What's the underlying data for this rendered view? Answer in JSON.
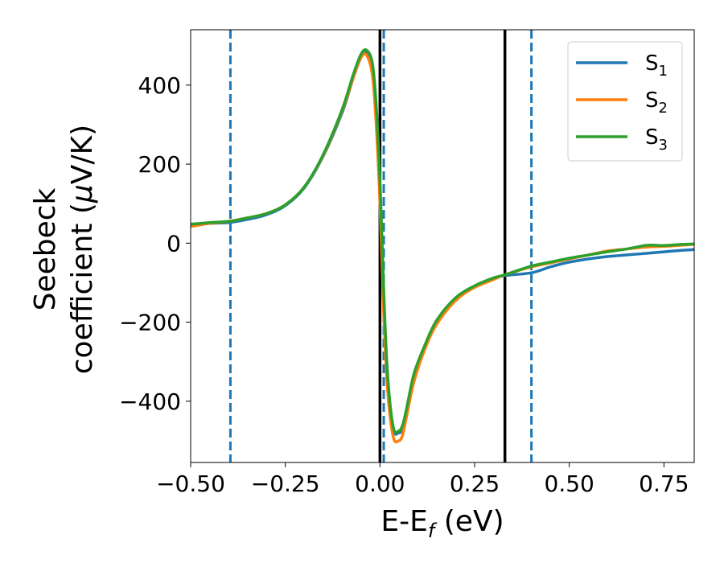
{
  "chart_data": {
    "type": "line",
    "title": "",
    "xlabel_main": "E-E",
    "xlabel_sub": "f",
    "xlabel_tail": " (eV)",
    "ylabel_line1": "Seebeck",
    "ylabel_line2_a": "coefficient  (",
    "ylabel_line2_mu": "μ",
    "ylabel_line2_b": "V/K)",
    "xlim": [
      -0.5,
      0.83
    ],
    "ylim": [
      -555,
      540
    ],
    "xticks": [
      -0.5,
      -0.25,
      0.0,
      0.25,
      0.5,
      0.75
    ],
    "xtick_labels": [
      "−0.50",
      "−0.25",
      "0.00",
      "0.25",
      "0.50",
      "0.75"
    ],
    "yticks": [
      -400,
      -200,
      0,
      200,
      400
    ],
    "ytick_labels": [
      "−400",
      "−200",
      "0",
      "200",
      "400"
    ],
    "grid": false,
    "legend_position": "top-right",
    "series": [
      {
        "name": "S",
        "sub": "1",
        "color": "#1f77b4",
        "x": [
          -0.5,
          -0.45,
          -0.4,
          -0.35,
          -0.3,
          -0.25,
          -0.2,
          -0.15,
          -0.1,
          -0.07,
          -0.05,
          -0.035,
          -0.02,
          -0.01,
          0.0,
          0.01,
          0.02,
          0.035,
          0.05,
          0.06,
          0.07,
          0.09,
          0.12,
          0.15,
          0.2,
          0.25,
          0.3,
          0.33,
          0.4,
          0.45,
          0.5,
          0.55,
          0.6,
          0.65,
          0.7,
          0.75,
          0.8,
          0.83
        ],
        "y": [
          45,
          50,
          52,
          60,
          72,
          95,
          140,
          220,
          330,
          420,
          470,
          482,
          440,
          330,
          130,
          -150,
          -340,
          -470,
          -480,
          -470,
          -430,
          -340,
          -260,
          -200,
          -140,
          -110,
          -90,
          -82,
          -75,
          -60,
          -48,
          -40,
          -34,
          -30,
          -26,
          -22,
          -18,
          -16
        ]
      },
      {
        "name": "S",
        "sub": "2",
        "color": "#ff7f0e",
        "x": [
          -0.5,
          -0.45,
          -0.4,
          -0.35,
          -0.3,
          -0.25,
          -0.2,
          -0.15,
          -0.1,
          -0.07,
          -0.05,
          -0.035,
          -0.02,
          -0.01,
          0.0,
          0.01,
          0.02,
          0.035,
          0.05,
          0.06,
          0.07,
          0.09,
          0.12,
          0.15,
          0.2,
          0.25,
          0.3,
          0.33,
          0.4,
          0.45,
          0.5,
          0.55,
          0.6,
          0.65,
          0.7,
          0.75,
          0.8,
          0.83
        ],
        "y": [
          42,
          50,
          55,
          64,
          75,
          97,
          142,
          222,
          335,
          420,
          470,
          475,
          425,
          300,
          100,
          -180,
          -370,
          -490,
          -500,
          -485,
          -440,
          -350,
          -265,
          -205,
          -145,
          -112,
          -92,
          -80,
          -60,
          -50,
          -40,
          -30,
          -20,
          -15,
          -10,
          -8,
          -5,
          -3
        ]
      },
      {
        "name": "S",
        "sub": "3",
        "color": "#2ca02c",
        "x": [
          -0.5,
          -0.45,
          -0.4,
          -0.35,
          -0.3,
          -0.25,
          -0.2,
          -0.15,
          -0.1,
          -0.07,
          -0.05,
          -0.035,
          -0.02,
          -0.01,
          0.0,
          0.01,
          0.02,
          0.035,
          0.05,
          0.06,
          0.07,
          0.09,
          0.12,
          0.15,
          0.2,
          0.25,
          0.3,
          0.33,
          0.4,
          0.45,
          0.5,
          0.55,
          0.6,
          0.65,
          0.7,
          0.72,
          0.75,
          0.8,
          0.83
        ],
        "y": [
          48,
          52,
          55,
          64,
          75,
          97,
          142,
          224,
          338,
          428,
          478,
          488,
          455,
          350,
          160,
          -120,
          -330,
          -465,
          -475,
          -460,
          -420,
          -330,
          -255,
          -195,
          -138,
          -108,
          -88,
          -80,
          -58,
          -48,
          -38,
          -30,
          -22,
          -15,
          -6,
          -5,
          -6,
          -3,
          -2
        ]
      }
    ],
    "vlines": [
      {
        "x": -0.395,
        "color": "#1f77b4",
        "style": "dashed"
      },
      {
        "x": 0.01,
        "color": "#1f77b4",
        "style": "dashed"
      },
      {
        "x": 0.4,
        "color": "#1f77b4",
        "style": "dashed"
      },
      {
        "x": 0.0,
        "color": "#000000",
        "style": "solid"
      },
      {
        "x": 0.33,
        "color": "#000000",
        "style": "solid"
      }
    ]
  }
}
